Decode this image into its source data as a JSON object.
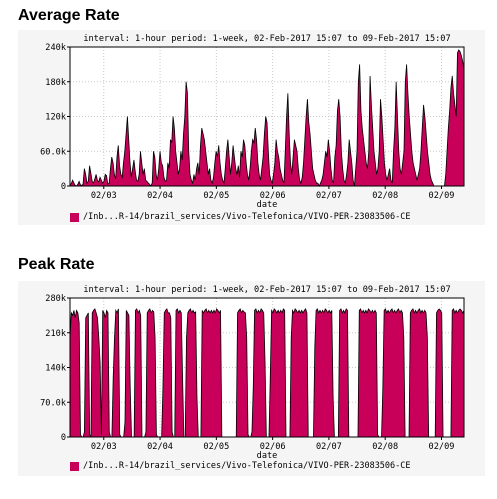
{
  "colors": {
    "series": "#c8005a",
    "line": "#000000",
    "bg": "#f5f5f5",
    "grid": "#c8c8c8",
    "axis": "#000000"
  },
  "chart_data": [
    {
      "type": "area",
      "title": "Average Rate",
      "subtitle": "interval: 1-hour  period: 1-week, 02-Feb-2017 15:07 to 09-Feb-2017 15:07",
      "xlabel": "date",
      "ylabel": "",
      "x_ticks": [
        "02/03",
        "02/04",
        "02/05",
        "02/06",
        "02/07",
        "02/08",
        "02/09"
      ],
      "y_ticks": [
        "0",
        "60.0k",
        "120k",
        "180k",
        "240k"
      ],
      "ylim": [
        0,
        240000
      ],
      "grid": true,
      "legend": "bottom",
      "series": [
        {
          "name": "/Inb...R-14/brazil_services/Vivo-Telefonica/VIVO-PER-23083506-CE",
          "values": [
            2000,
            4000,
            10000,
            5000,
            1000,
            0,
            3000,
            8000,
            2000,
            1000,
            3000,
            30000,
            20000,
            5000,
            8000,
            35000,
            22000,
            8000,
            5000,
            12000,
            20000,
            10000,
            7000,
            15000,
            10000,
            5000,
            8000,
            20000,
            18000,
            3000,
            5000,
            30000,
            50000,
            40000,
            20000,
            12000,
            50000,
            70000,
            35000,
            20000,
            15000,
            40000,
            60000,
            90000,
            120000,
            80000,
            40000,
            15000,
            30000,
            45000,
            25000,
            10000,
            8000,
            20000,
            60000,
            40000,
            20000,
            30000,
            10000,
            8000,
            5000,
            3000,
            0,
            5000,
            60000,
            50000,
            20000,
            10000,
            30000,
            60000,
            40000,
            35000,
            15000,
            8000,
            10000,
            40000,
            30000,
            80000,
            75000,
            120000,
            100000,
            60000,
            40000,
            20000,
            30000,
            60000,
            45000,
            90000,
            120000,
            180000,
            160000,
            60000,
            20000,
            10000,
            5000,
            20000,
            10000,
            30000,
            40000,
            20000,
            70000,
            100000,
            90000,
            80000,
            60000,
            40000,
            20000,
            30000,
            10000,
            5000,
            15000,
            40000,
            60000,
            50000,
            70000,
            40000,
            20000,
            10000,
            5000,
            30000,
            60000,
            80000,
            50000,
            20000,
            40000,
            70000,
            50000,
            30000,
            20000,
            35000,
            15000,
            60000,
            50000,
            80000,
            70000,
            40000,
            20000,
            10000,
            30000,
            60000,
            80000,
            75000,
            100000,
            80000,
            40000,
            20000,
            10000,
            30000,
            50000,
            90000,
            120000,
            110000,
            60000,
            20000,
            10000,
            5000,
            20000,
            40000,
            80000,
            60000,
            50000,
            30000,
            20000,
            10000,
            5000,
            60000,
            120000,
            160000,
            90000,
            40000,
            20000,
            50000,
            80000,
            70000,
            60000,
            30000,
            10000,
            5000,
            15000,
            40000,
            80000,
            120000,
            150000,
            110000,
            90000,
            60000,
            30000,
            20000,
            10000,
            5000,
            5000,
            0,
            5000,
            10000,
            20000,
            40000,
            60000,
            50000,
            80000,
            60000,
            30000,
            10000,
            5000,
            50000,
            70000,
            130000,
            150000,
            120000,
            60000,
            30000,
            10000,
            5000,
            20000,
            40000,
            80000,
            60000,
            40000,
            10000,
            0,
            30000,
            60000,
            180000,
            210000,
            130000,
            100000,
            80000,
            60000,
            40000,
            30000,
            60000,
            190000,
            140000,
            100000,
            60000,
            40000,
            20000,
            30000,
            60000,
            150000,
            120000,
            80000,
            40000,
            20000,
            10000,
            20000,
            30000,
            10000,
            5000,
            60000,
            100000,
            180000,
            120000,
            60000,
            30000,
            20000,
            40000,
            60000,
            180000,
            210000,
            160000,
            120000,
            90000,
            60000,
            40000,
            30000,
            20000,
            10000,
            20000,
            30000,
            60000,
            100000,
            140000,
            120000,
            90000,
            60000,
            40000,
            20000,
            10000,
            5000,
            0,
            0,
            0,
            0,
            0,
            0,
            0,
            0,
            0,
            20000,
            60000,
            100000,
            130000,
            170000,
            190000,
            160000,
            140000,
            120000,
            230000,
            235000,
            232000,
            225000,
            215000,
            200000
          ]
        }
      ]
    },
    {
      "type": "area",
      "title": "Peak Rate",
      "subtitle": "interval: 1-hour  period: 1-week, 02-Feb-2017 15:07 to 09-Feb-2017 15:07",
      "xlabel": "date",
      "ylabel": "",
      "x_ticks": [
        "02/03",
        "02/04",
        "02/05",
        "02/06",
        "02/07",
        "02/08",
        "02/09"
      ],
      "y_ticks": [
        "0",
        "70.0k",
        "140k",
        "210k",
        "280k"
      ],
      "ylim": [
        0,
        280000
      ],
      "grid": true,
      "legend": "bottom",
      "series": [
        {
          "name": "/Inb...R-14/brazil_services/Vivo-Telefonica/VIVO-PER-23083506-CE",
          "values": [
            200000,
            250000,
            245000,
            255000,
            240000,
            255000,
            250000,
            230000,
            5000,
            0,
            0,
            10000,
            240000,
            245000,
            250000,
            5000,
            0,
            250000,
            255000,
            258000,
            250000,
            240000,
            200000,
            150000,
            5000,
            255000,
            250000,
            240000,
            255000,
            250000,
            10000,
            0,
            0,
            120000,
            200000,
            255000,
            250000,
            258000,
            5000,
            0,
            0,
            0,
            30000,
            255000,
            250000,
            245000,
            100000,
            0,
            0,
            0,
            255000,
            258000,
            250000,
            255000,
            245000,
            0,
            0,
            0,
            10000,
            250000,
            255000,
            258000,
            250000,
            255000,
            252000,
            200000,
            5000,
            0,
            0,
            0,
            0,
            100000,
            250000,
            255000,
            258000,
            250000,
            250000,
            240000,
            10000,
            0,
            0,
            255000,
            258000,
            250000,
            255000,
            250000,
            120000,
            0,
            0,
            200000,
            250000,
            255000,
            258000,
            250000,
            255000,
            250000,
            252000,
            80000,
            0,
            0,
            0,
            255000,
            250000,
            255000,
            258000,
            250000,
            255000,
            250000,
            255000,
            250000,
            255000,
            250000,
            258000,
            255000,
            250000,
            255000,
            0,
            0,
            0,
            0,
            0,
            0,
            0,
            0,
            0,
            0,
            0,
            0,
            250000,
            255000,
            258000,
            250000,
            255000,
            252000,
            250000,
            200000,
            5000,
            0,
            0,
            10000,
            100000,
            255000,
            258000,
            250000,
            255000,
            250000,
            258000,
            255000,
            250000,
            150000,
            0,
            0,
            0,
            120000,
            255000,
            250000,
            258000,
            255000,
            250000,
            255000,
            250000,
            255000,
            250000,
            258000,
            255000,
            0,
            0,
            0,
            0,
            200000,
            255000,
            250000,
            258000,
            255000,
            250000,
            255000,
            250000,
            255000,
            250000,
            255000,
            258000,
            250000,
            0,
            0,
            0,
            0,
            0,
            180000,
            255000,
            258000,
            250000,
            255000,
            250000,
            255000,
            250000,
            258000,
            255000,
            250000,
            255000,
            250000,
            255000,
            80000,
            0,
            0,
            0,
            0,
            255000,
            258000,
            250000,
            255000,
            250000,
            258000,
            255000,
            0,
            0,
            0,
            0,
            0,
            0,
            0,
            0,
            255000,
            258000,
            250000,
            255000,
            250000,
            255000,
            250000,
            258000,
            255000,
            250000,
            255000,
            250000,
            255000,
            250000,
            5000,
            0,
            0,
            0,
            100000,
            255000,
            258000,
            250000,
            255000,
            250000,
            255000,
            258000,
            250000,
            255000,
            250000,
            255000,
            258000,
            250000,
            255000,
            250000,
            200000,
            0,
            0,
            0,
            0,
            250000,
            255000,
            258000,
            250000,
            255000,
            250000,
            255000,
            258000,
            250000,
            255000,
            250000,
            255000,
            250000,
            200000,
            0,
            0,
            0,
            0,
            0,
            0,
            250000,
            255000,
            258000,
            255000,
            250000,
            0,
            0,
            0,
            0,
            0,
            0,
            0,
            255000,
            258000,
            250000,
            255000,
            250000,
            255000,
            258000,
            255000,
            250000,
            255000
          ]
        }
      ]
    }
  ]
}
